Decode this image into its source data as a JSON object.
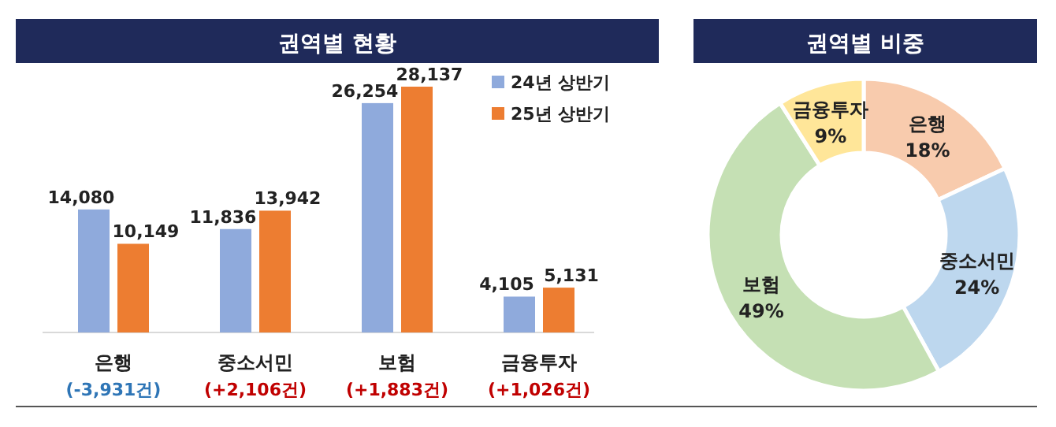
{
  "chart_data": [
    {
      "type": "bar",
      "title": "권역별 현황",
      "categories": [
        "은행",
        "중소서민",
        "보험",
        "금융투자"
      ],
      "series": [
        {
          "name": "24년 상반기",
          "color": "#8faadc",
          "values": [
            14080,
            11836,
            26254,
            4105
          ],
          "value_labels": [
            "14,080",
            "11,836",
            "26,254",
            "4,105"
          ]
        },
        {
          "name": "25년 상반기",
          "color": "#ed7d31",
          "values": [
            10149,
            13942,
            28137,
            5131
          ],
          "value_labels": [
            "10,149",
            "13,942",
            "28,137",
            "5,131"
          ]
        }
      ],
      "legend": "top right",
      "annotations": [
        "(-3,931건)",
        "(+2,106건)",
        "(+1,883건)",
        "(+1,026건)"
      ]
    },
    {
      "type": "donut",
      "title": "권역별 비중",
      "categories": [
        "은행",
        "중소서민",
        "보험",
        "금융투자"
      ],
      "values": [
        18,
        24,
        49,
        9
      ],
      "colors": [
        "#f8cbad",
        "#bdd7ee",
        "#c5e0b4",
        "#ffe699"
      ],
      "value_labels": [
        "18%",
        "24%",
        "49%",
        "9%"
      ]
    }
  ]
}
